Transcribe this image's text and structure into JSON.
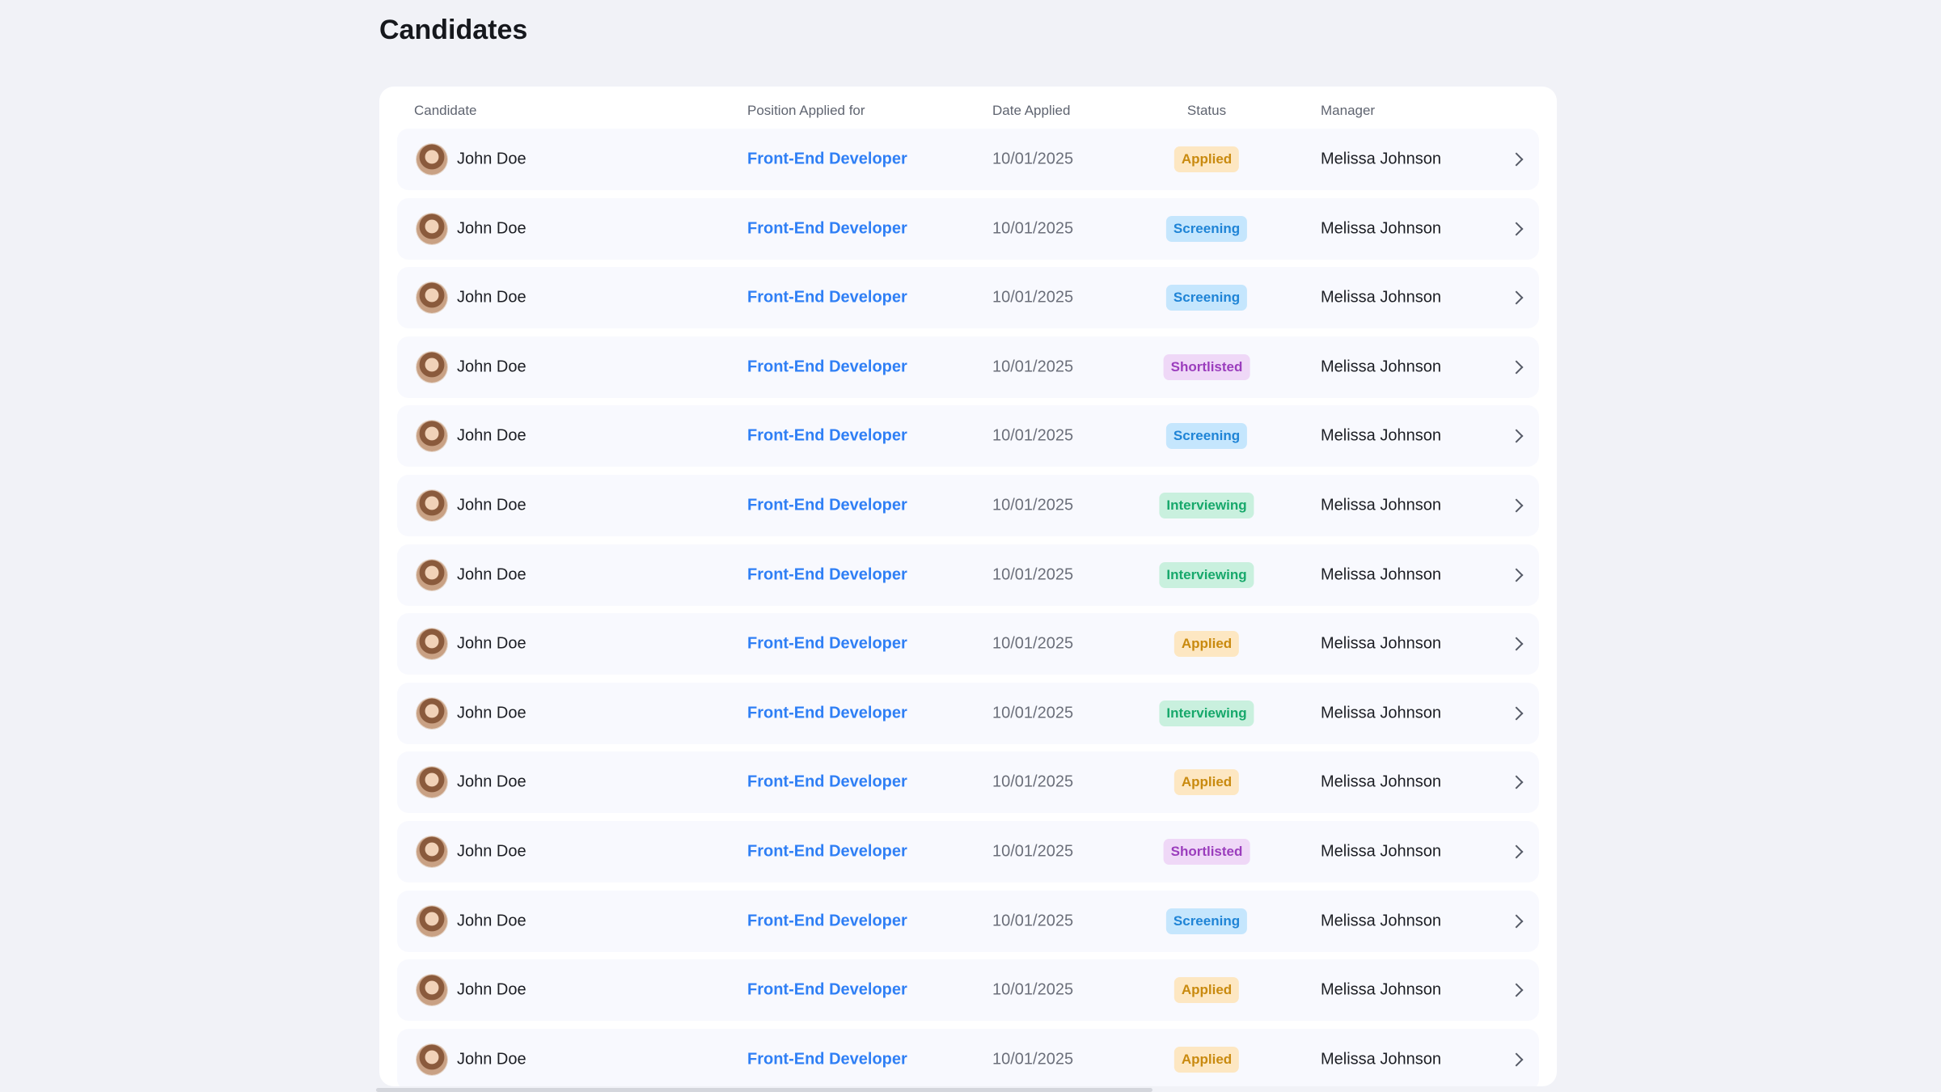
{
  "page_title": "Candidates",
  "columns": {
    "candidate": "Candidate",
    "position": "Position Applied for",
    "date": "Date Applied",
    "status": "Status",
    "manager": "Manager"
  },
  "status_colors": {
    "Applied": {
      "bg": "#fde7c2",
      "fg": "#c98a0f"
    },
    "Screening": {
      "bg": "#c5e6fd",
      "fg": "#1f84d6"
    },
    "Shortlisted": {
      "bg": "#efd8f7",
      "fg": "#9b3dbd"
    },
    "Interviewing": {
      "bg": "#c9f0de",
      "fg": "#17a86b"
    }
  },
  "rows": [
    {
      "name": "John Doe",
      "position": "Front-End Developer",
      "date": "10/01/2025",
      "status": "Applied",
      "manager": "Melissa Johnson"
    },
    {
      "name": "John Doe",
      "position": "Front-End Developer",
      "date": "10/01/2025",
      "status": "Screening",
      "manager": "Melissa Johnson"
    },
    {
      "name": "John Doe",
      "position": "Front-End Developer",
      "date": "10/01/2025",
      "status": "Screening",
      "manager": "Melissa Johnson"
    },
    {
      "name": "John Doe",
      "position": "Front-End Developer",
      "date": "10/01/2025",
      "status": "Shortlisted",
      "manager": "Melissa Johnson"
    },
    {
      "name": "John Doe",
      "position": "Front-End Developer",
      "date": "10/01/2025",
      "status": "Screening",
      "manager": "Melissa Johnson"
    },
    {
      "name": "John Doe",
      "position": "Front-End Developer",
      "date": "10/01/2025",
      "status": "Interviewing",
      "manager": "Melissa Johnson"
    },
    {
      "name": "John Doe",
      "position": "Front-End Developer",
      "date": "10/01/2025",
      "status": "Interviewing",
      "manager": "Melissa Johnson"
    },
    {
      "name": "John Doe",
      "position": "Front-End Developer",
      "date": "10/01/2025",
      "status": "Applied",
      "manager": "Melissa Johnson"
    },
    {
      "name": "John Doe",
      "position": "Front-End Developer",
      "date": "10/01/2025",
      "status": "Interviewing",
      "manager": "Melissa Johnson"
    },
    {
      "name": "John Doe",
      "position": "Front-End Developer",
      "date": "10/01/2025",
      "status": "Applied",
      "manager": "Melissa Johnson"
    },
    {
      "name": "John Doe",
      "position": "Front-End Developer",
      "date": "10/01/2025",
      "status": "Shortlisted",
      "manager": "Melissa Johnson"
    },
    {
      "name": "John Doe",
      "position": "Front-End Developer",
      "date": "10/01/2025",
      "status": "Screening",
      "manager": "Melissa Johnson"
    },
    {
      "name": "John Doe",
      "position": "Front-End Developer",
      "date": "10/01/2025",
      "status": "Applied",
      "manager": "Melissa Johnson"
    },
    {
      "name": "John Doe",
      "position": "Front-End Developer",
      "date": "10/01/2025",
      "status": "Applied",
      "manager": "Melissa Johnson"
    }
  ]
}
